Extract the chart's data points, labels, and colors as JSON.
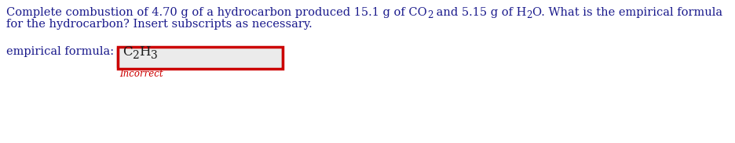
{
  "bg_color": "#ffffff",
  "text_color": "#1a1a8c",
  "formula_color": "#1a1a1a",
  "incorrect_color": "#cc0000",
  "box_fill": "#ebebeb",
  "box_border_outer": "#cc0000",
  "box_border_inner": "#aaaaaa",
  "font_size_main": 10.5,
  "font_size_formula": 12,
  "font_size_incorrect": 8.5,
  "line1_seg1": "Complete combustion of 4.70 g of a hydrocarbon produced 15.1 g of CO",
  "line1_sub1": "2",
  "line1_seg2": " and 5.15 g of H",
  "line1_sub2": "2",
  "line1_seg3": "O. What is the empirical formula",
  "line2": "for the hydrocarbon? Insert subscripts as necessary.",
  "label": "empirical formula: ",
  "formula_seg1": "C",
  "formula_sub1": "2",
  "formula_seg2": "H",
  "formula_sub2": "3",
  "incorrect": "Incorrect"
}
